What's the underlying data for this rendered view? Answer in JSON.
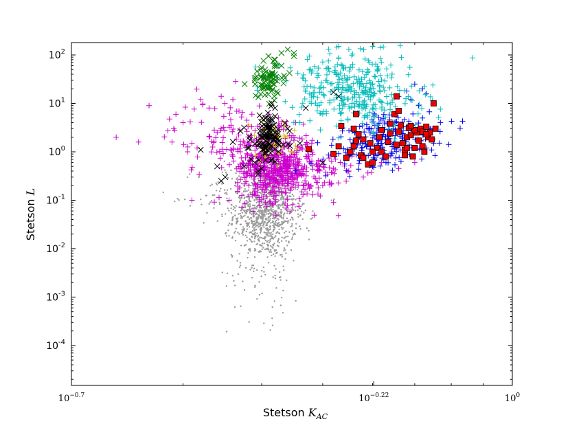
{
  "chart_data": {
    "type": "scatter",
    "title": "",
    "xlabel": {
      "text": "Stetson ",
      "math": "K",
      "sub": "AC"
    },
    "ylabel": {
      "text": "Stetson ",
      "math": "L"
    },
    "x_scale": "log",
    "y_scale": "log",
    "xlim": [
      0.1995,
      1.0
    ],
    "ylim": [
      1.5e-05,
      180
    ],
    "x_ticks": [
      {
        "value": 0.1995,
        "base": "10",
        "exp": "−0.7"
      },
      {
        "value": 0.6026,
        "base": "10",
        "exp": "−0.22"
      },
      {
        "value": 1.0,
        "base": "10",
        "exp": "0"
      }
    ],
    "y_ticks": [
      {
        "value": 100,
        "base": "10",
        "exp": "2"
      },
      {
        "value": 10,
        "base": "10",
        "exp": "1"
      },
      {
        "value": 1,
        "base": "10",
        "exp": "0"
      },
      {
        "value": 0.1,
        "base": "10",
        "exp": "-1"
      },
      {
        "value": 0.01,
        "base": "10",
        "exp": "-2"
      },
      {
        "value": 0.001,
        "base": "10",
        "exp": "-3"
      },
      {
        "value": 0.0001,
        "base": "10",
        "exp": "-4"
      }
    ],
    "grid": false,
    "legend": "none",
    "series": [
      {
        "marker": "dot",
        "color": "#9a9a9a",
        "clusters": [
          {
            "center": [
              0.405,
              0.05
            ],
            "spread": [
              0.025,
              0.45
            ],
            "count": 900
          },
          {
            "center": [
              0.4,
              0.12
            ],
            "spread": [
              0.05,
              0.35
            ],
            "count": 250
          },
          {
            "center": [
              0.405,
              0.003
            ],
            "spread": [
              0.03,
              0.5
            ],
            "count": 60
          }
        ]
      },
      {
        "marker": "plus",
        "color": "#cc00cc",
        "clusters": [
          {
            "center": [
              0.42,
              0.5
            ],
            "spread": [
              0.03,
              0.35
            ],
            "count": 500
          },
          {
            "center": [
              0.36,
              2.0
            ],
            "spread": [
              0.05,
              0.4
            ],
            "count": 120
          },
          {
            "center": [
              0.47,
              0.3
            ],
            "spread": [
              0.04,
              0.3
            ],
            "count": 100
          }
        ],
        "points": [
          [
            0.235,
            2.0
          ],
          [
            0.265,
            9.0
          ],
          [
            0.3,
            4.0
          ],
          [
            0.32,
            12.0
          ],
          [
            0.33,
            8.0
          ],
          [
            0.29,
            3.0
          ],
          [
            0.31,
            1.5
          ],
          [
            0.34,
            2.5
          ],
          [
            0.345,
            14.0
          ],
          [
            0.36,
            12.0
          ],
          [
            0.31,
            0.1
          ],
          [
            0.355,
            0.1
          ],
          [
            0.52,
            0.09
          ],
          [
            0.5,
            0.2
          ],
          [
            0.55,
            0.4
          ],
          [
            0.58,
            0.3
          ],
          [
            0.6,
            0.5
          ],
          [
            0.62,
            0.6
          ],
          [
            0.66,
            0.45
          ],
          [
            0.7,
            0.6
          ]
        ]
      },
      {
        "marker": "plus",
        "color": "#0000ee",
        "clusters": [
          {
            "center": [
              0.64,
              2.2
            ],
            "spread": [
              0.04,
              0.25
            ],
            "count": 160
          },
          {
            "center": [
              0.58,
              0.9
            ],
            "spread": [
              0.04,
              0.2
            ],
            "count": 60
          }
        ],
        "points": [
          [
            0.72,
            20.0
          ],
          [
            0.73,
            16.0
          ],
          [
            0.7,
            25.0
          ],
          [
            0.68,
            18.0
          ],
          [
            0.66,
            14.0
          ],
          [
            0.74,
            3.0
          ],
          [
            0.74,
            2.0
          ],
          [
            0.75,
            1.5
          ],
          [
            0.73,
            1.2
          ],
          [
            0.72,
            5.0
          ],
          [
            0.71,
            9.0
          ],
          [
            0.69,
            12.0
          ],
          [
            0.6,
            0.5
          ],
          [
            0.63,
            0.6
          ]
        ]
      },
      {
        "marker": "plus",
        "color": "#00bbbb",
        "clusters": [
          {
            "center": [
              0.57,
              15.0
            ],
            "spread": [
              0.05,
              0.35
            ],
            "count": 280
          },
          {
            "center": [
              0.52,
              50.0
            ],
            "spread": [
              0.04,
              0.25
            ],
            "count": 60
          }
        ],
        "points": [
          [
            0.49,
            7.0
          ],
          [
            0.5,
            6.0
          ],
          [
            0.48,
            10.0
          ],
          [
            0.53,
            150.0
          ],
          [
            0.55,
            130.0
          ],
          [
            0.6,
            150.0
          ],
          [
            0.46,
            4.0
          ]
        ]
      },
      {
        "marker": "x",
        "color": "#008000",
        "clusters": [
          {
            "center": [
              0.41,
              30.0
            ],
            "spread": [
              0.015,
              0.2
            ],
            "count": 70
          }
        ],
        "points": [
          [
            0.39,
            30.0
          ],
          [
            0.4,
            55.0
          ],
          [
            0.42,
            80.0
          ],
          [
            0.43,
            110.0
          ],
          [
            0.44,
            130.0
          ],
          [
            0.45,
            95.0
          ],
          [
            0.41,
            95.0
          ],
          [
            0.415,
            18.0
          ],
          [
            0.42,
            40.0
          ],
          [
            0.43,
            60.0
          ],
          [
            0.45,
            110.0
          ]
        ]
      },
      {
        "marker": "plus",
        "color": "#d4c020",
        "clusters": [
          {
            "center": [
              0.415,
              1.6
            ],
            "spread": [
              0.018,
              0.2
            ],
            "count": 50
          }
        ]
      },
      {
        "marker": "x",
        "color": "#000000",
        "clusters": [
          {
            "center": [
              0.41,
              2.0
            ],
            "spread": [
              0.014,
              0.25
            ],
            "count": 110
          }
        ],
        "points": [
          [
            0.32,
            1.1
          ],
          [
            0.34,
            0.5
          ],
          [
            0.345,
            0.25
          ],
          [
            0.35,
            0.3
          ],
          [
            0.36,
            1.6
          ],
          [
            0.37,
            2.7
          ],
          [
            0.375,
            0.5
          ],
          [
            0.38,
            1.2
          ],
          [
            0.385,
            0.7
          ],
          [
            0.39,
            0.6
          ],
          [
            0.395,
            0.35
          ],
          [
            0.395,
            0.4
          ],
          [
            0.4,
            0.45
          ],
          [
            0.415,
            10.0
          ],
          [
            0.42,
            8.0
          ],
          [
            0.46,
            1.5
          ],
          [
            0.5,
            0.6
          ],
          [
            0.52,
            17.0
          ],
          [
            0.53,
            14.0
          ],
          [
            0.47,
            8.0
          ],
          [
            0.44,
            3.0
          ]
        ]
      },
      {
        "marker": "square",
        "color": "#ee0000",
        "points": [
          [
            0.475,
            1.15
          ],
          [
            0.52,
            0.9
          ],
          [
            0.53,
            1.3
          ],
          [
            0.535,
            3.4
          ],
          [
            0.545,
            0.75
          ],
          [
            0.553,
            1.0
          ],
          [
            0.56,
            1.3
          ],
          [
            0.565,
            1.7
          ],
          [
            0.56,
            3.0
          ],
          [
            0.565,
            6.0
          ],
          [
            0.57,
            2.3
          ],
          [
            0.575,
            0.85
          ],
          [
            0.58,
            0.75
          ],
          [
            0.59,
            0.55
          ],
          [
            0.6,
            0.6
          ],
          [
            0.595,
            1.5
          ],
          [
            0.61,
            1.2
          ],
          [
            0.615,
            2.0
          ],
          [
            0.62,
            1.0
          ],
          [
            0.63,
            0.8
          ],
          [
            0.635,
            1.6
          ],
          [
            0.64,
            2.4
          ],
          [
            0.65,
            6.0
          ],
          [
            0.655,
            14.0
          ],
          [
            0.66,
            7.0
          ],
          [
            0.665,
            3.5
          ],
          [
            0.67,
            1.5
          ],
          [
            0.675,
            1.1
          ],
          [
            0.68,
            2.0
          ],
          [
            0.685,
            3.1
          ],
          [
            0.69,
            2.2
          ],
          [
            0.695,
            0.8
          ],
          [
            0.7,
            1.2
          ],
          [
            0.705,
            2.5
          ],
          [
            0.71,
            1.7
          ],
          [
            0.715,
            3.0
          ],
          [
            0.72,
            2.6
          ],
          [
            0.725,
            1.0
          ],
          [
            0.73,
            3.3
          ],
          [
            0.735,
            2.0
          ],
          [
            0.74,
            2.5
          ],
          [
            0.745,
            1.8
          ],
          [
            0.75,
            10.0
          ],
          [
            0.755,
            3.0
          ],
          [
            0.62,
            2.8
          ],
          [
            0.64,
            3.8
          ],
          [
            0.66,
            2.6
          ],
          [
            0.68,
            1.2
          ],
          [
            0.7,
            2.8
          ],
          [
            0.72,
            1.3
          ],
          [
            0.6,
            1.0
          ],
          [
            0.58,
            1.8
          ],
          [
            0.655,
            1.4
          ],
          [
            0.73,
            2.3
          ],
          [
            0.69,
            3.4
          ],
          [
            0.675,
            0.85
          ]
        ]
      }
    ]
  }
}
